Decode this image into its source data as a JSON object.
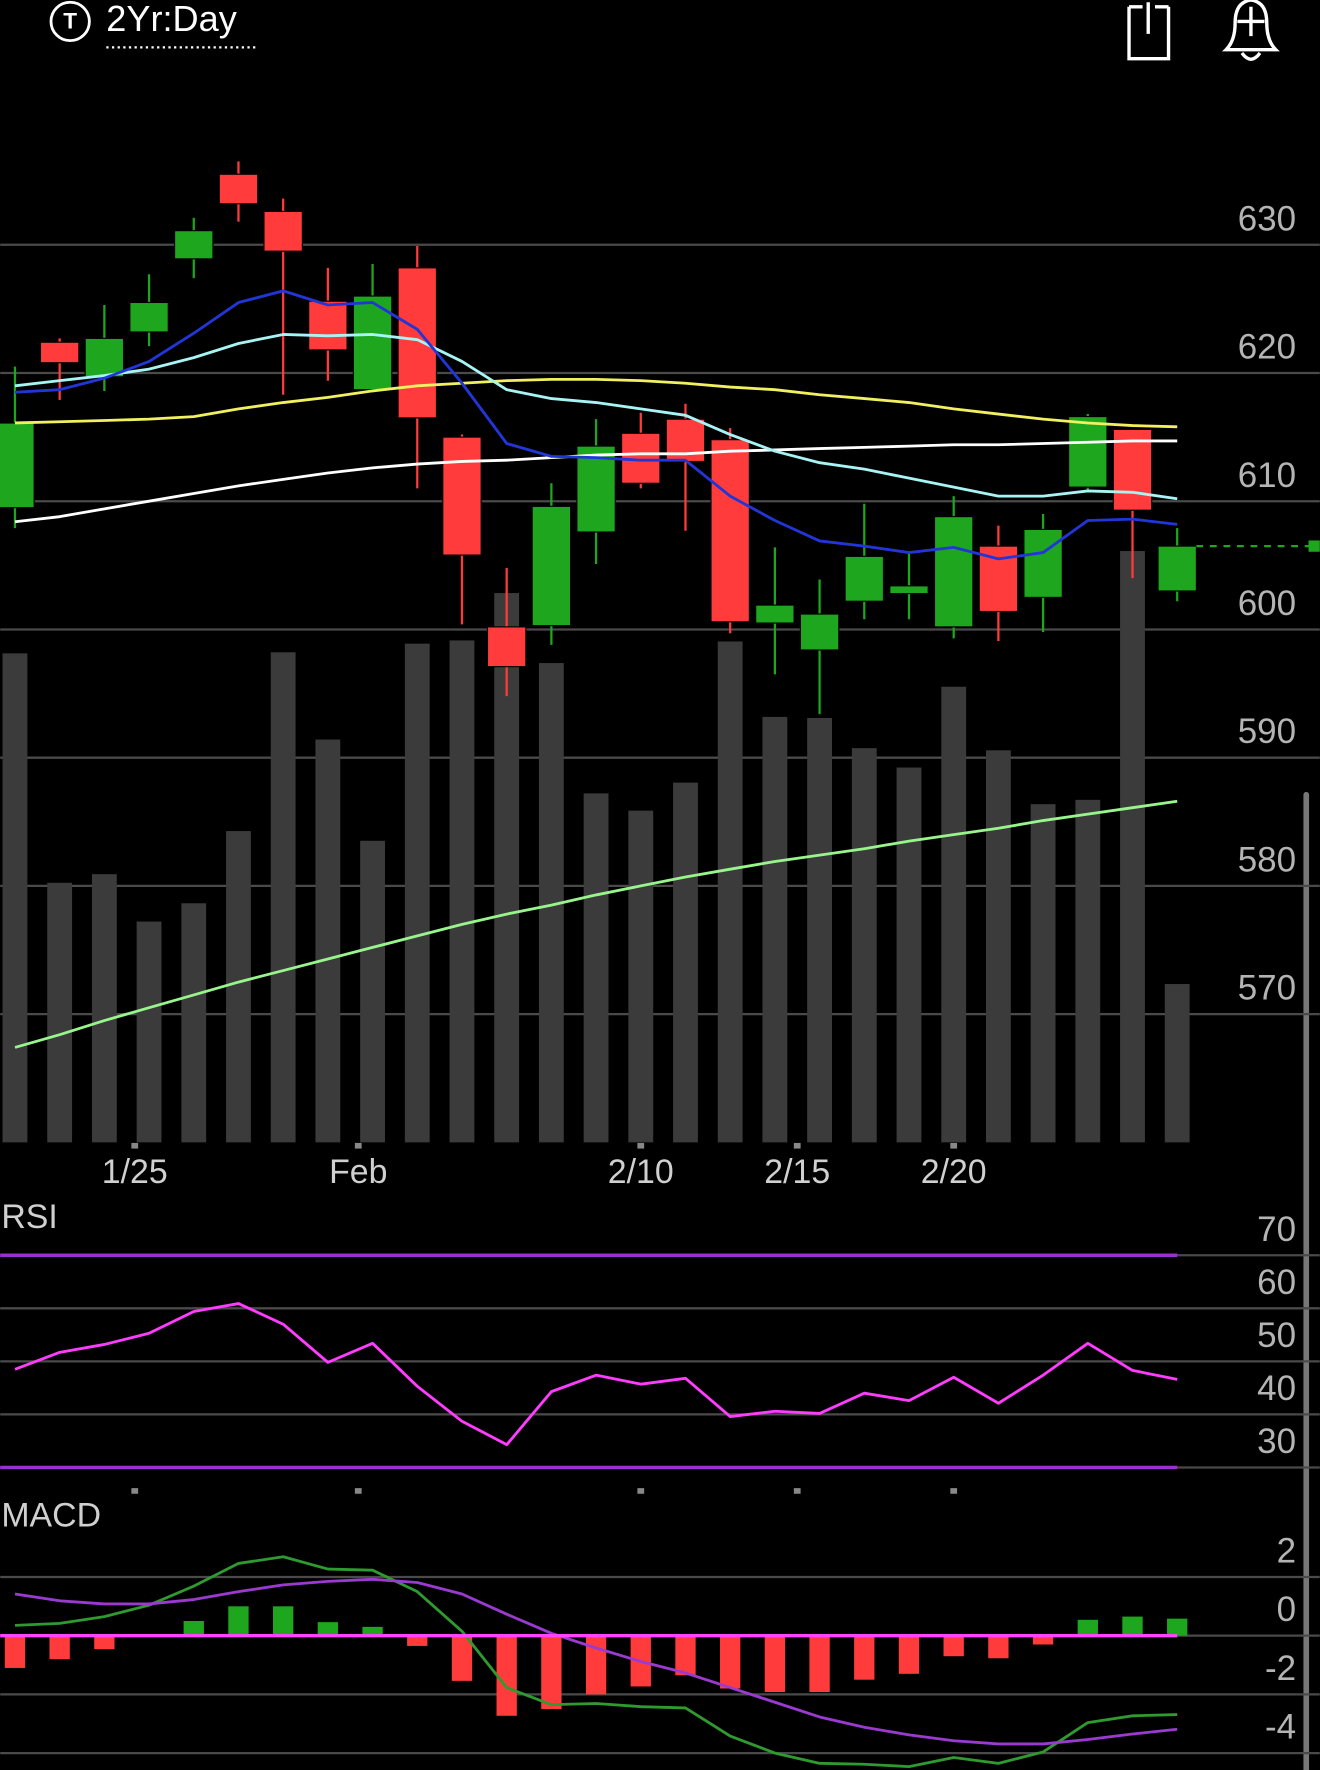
{
  "header": {
    "icon_letter": "T",
    "timeframe": "2Yr:Day"
  },
  "chart_data": [
    {
      "type": "candlestick",
      "xlim": [
        -0.33,
        29.19
      ],
      "xticks": [
        {
          "value": 2.68,
          "label": "1/25"
        },
        {
          "value": 7.68,
          "label": "Feb"
        },
        {
          "value": 14.0,
          "label": "2/10"
        },
        {
          "value": 17.5,
          "label": "2/15"
        },
        {
          "value": 21.0,
          "label": "2/20"
        }
      ],
      "ylim": [
        560,
        644
      ],
      "yticks": [
        570,
        580,
        590,
        600,
        610,
        620,
        630
      ],
      "grid": true,
      "up_color": "#1fa61f",
      "down_color": "#ff3b3b",
      "candles": {
        "open": [
          609.5,
          622.4,
          619.7,
          623.2,
          628.9,
          635.5,
          632.6,
          625.6,
          618.7,
          628.2,
          615.0,
          600.2,
          600.3,
          607.6,
          615.3,
          616.4,
          614.8,
          600.5,
          598.4,
          602.2,
          602.8,
          600.2,
          606.5,
          602.5,
          611.1,
          615.6,
          603.0
        ],
        "high": [
          620.5,
          622.7,
          625.3,
          627.7,
          632.1,
          636.5,
          633.6,
          628.2,
          628.5,
          629.9,
          615.2,
          604.8,
          611.4,
          616.4,
          616.9,
          617.6,
          615.7,
          606.4,
          603.9,
          609.8,
          606.0,
          610.4,
          608.1,
          609.0,
          616.8,
          615.6,
          607.9
        ],
        "low": [
          607.9,
          617.9,
          618.6,
          622.1,
          627.4,
          631.8,
          618.3,
          619.4,
          618.7,
          611.0,
          600.4,
          594.8,
          598.8,
          605.1,
          611.0,
          607.7,
          599.7,
          596.5,
          593.4,
          600.8,
          600.8,
          599.3,
          599.1,
          599.8,
          610.9,
          604.0,
          602.2
        ],
        "close": [
          616.1,
          620.8,
          622.7,
          625.5,
          631.1,
          633.2,
          629.5,
          621.8,
          626.0,
          616.5,
          605.8,
          597.1,
          609.6,
          614.3,
          611.4,
          613.1,
          600.6,
          601.9,
          601.2,
          605.7,
          603.4,
          608.8,
          601.4,
          607.8,
          616.6,
          609.3,
          606.5
        ]
      },
      "volume": {
        "color": "#3b3b3b",
        "ylim": [
          0,
          100
        ],
        "values": [
          45.4,
          24.1,
          24.9,
          20.5,
          22.2,
          28.9,
          45.5,
          37.4,
          28.0,
          46.3,
          46.6,
          51.0,
          44.5,
          32.4,
          30.8,
          33.4,
          46.5,
          39.5,
          39.4,
          36.6,
          34.8,
          42.3,
          36.4,
          31.4,
          31.8,
          54.9,
          14.7
        ]
      },
      "series": [
        {
          "color": "#98f58c",
          "values": [
            567.4,
            568.4,
            569.5,
            570.5,
            571.5,
            572.5,
            573.4,
            574.3,
            575.2,
            576.1,
            577.0,
            577.8,
            578.5,
            579.3,
            580.0,
            580.7,
            581.3,
            581.9,
            582.4,
            582.9,
            583.5,
            584.0,
            584.5,
            585.1,
            585.6,
            586.1,
            586.6
          ]
        },
        {
          "color": "#f0f060",
          "values": [
            616.1,
            616.2,
            616.3,
            616.4,
            616.6,
            617.2,
            617.7,
            618.1,
            618.6,
            619.0,
            619.2,
            619.4,
            619.5,
            619.5,
            619.4,
            619.2,
            618.9,
            618.7,
            618.3,
            618.0,
            617.7,
            617.2,
            616.8,
            616.4,
            616.1,
            615.9,
            615.8
          ]
        },
        {
          "color": "#ffffff",
          "values": [
            608.4,
            608.8,
            609.4,
            610.0,
            610.6,
            611.2,
            611.7,
            612.2,
            612.6,
            612.9,
            613.1,
            613.2,
            613.4,
            613.6,
            613.7,
            613.7,
            613.9,
            614.0,
            614.1,
            614.2,
            614.3,
            614.4,
            614.4,
            614.5,
            614.6,
            614.7,
            614.7
          ]
        },
        {
          "color": "#a8f4f4",
          "values": [
            619.0,
            619.4,
            619.8,
            620.3,
            621.2,
            622.3,
            623.0,
            622.9,
            623.0,
            622.6,
            620.9,
            618.7,
            618.0,
            617.7,
            617.2,
            616.7,
            615.2,
            613.9,
            613.0,
            612.5,
            611.8,
            611.1,
            610.4,
            610.4,
            610.8,
            610.7,
            610.2
          ]
        },
        {
          "color": "#2236d8",
          "values": [
            618.5,
            618.7,
            619.6,
            620.9,
            623.1,
            625.5,
            626.4,
            625.3,
            625.5,
            623.4,
            619.2,
            614.5,
            613.5,
            613.4,
            613.2,
            613.2,
            610.4,
            608.5,
            606.9,
            606.5,
            606.0,
            606.4,
            605.5,
            606.0,
            608.5,
            608.6,
            608.2
          ]
        }
      ],
      "last_price": 606.5,
      "last_price_color": "#1fa61f"
    },
    {
      "type": "line",
      "title": "RSI",
      "xlim": [
        -0.33,
        29.19
      ],
      "ylim": [
        26,
        80
      ],
      "yticks": [
        30,
        40,
        50,
        60,
        70
      ],
      "grid": true,
      "levels": [
        70,
        30
      ],
      "level_color": "#9b30d0",
      "series": [
        {
          "color": "#ff3cff",
          "values": [
            48.5,
            51.7,
            53.2,
            55.3,
            59.4,
            60.9,
            57.0,
            49.8,
            53.4,
            45.3,
            38.7,
            34.3,
            44.3,
            47.4,
            45.7,
            46.8,
            39.6,
            40.6,
            40.2,
            44.0,
            42.6,
            47.0,
            42.1,
            47.4,
            53.4,
            48.3,
            46.6
          ]
        }
      ]
    },
    {
      "type": "macd",
      "title": "MACD",
      "xlim": [
        -0.33,
        29.19
      ],
      "ylim": [
        -4.6,
        3.4
      ],
      "yticks": [
        2,
        0,
        -2,
        -4
      ],
      "grid": true,
      "levels": [
        0
      ],
      "level_color": "#ff44ff",
      "histogram": {
        "up_color": "#1fa61f",
        "down_color": "#ff3b3b",
        "values": [
          -1.1,
          -0.8,
          -0.46,
          0,
          0.5,
          1.0,
          1.0,
          0.46,
          0.3,
          -0.35,
          -1.54,
          -2.73,
          -2.5,
          -2.0,
          -1.73,
          -1.35,
          -1.8,
          -1.92,
          -1.92,
          -1.5,
          -1.3,
          -0.7,
          -0.77,
          -0.3,
          0.54,
          0.65,
          0.58
        ]
      },
      "series": [
        {
          "color": "#2f9a2f",
          "values": [
            0.35,
            0.42,
            0.65,
            1.04,
            1.69,
            2.46,
            2.69,
            2.27,
            2.23,
            1.5,
            0.15,
            -1.77,
            -2.35,
            -2.31,
            -2.42,
            -2.46,
            -3.42,
            -4.0,
            -4.35,
            -4.38,
            -4.46,
            -4.15,
            -4.35,
            -3.96,
            -2.96,
            -2.73,
            -2.69
          ]
        },
        {
          "color": "#9a3ad0",
          "values": [
            1.42,
            1.19,
            1.08,
            1.08,
            1.23,
            1.5,
            1.73,
            1.85,
            1.92,
            1.81,
            1.42,
            0.73,
            0.08,
            -0.42,
            -0.88,
            -1.27,
            -1.77,
            -2.27,
            -2.77,
            -3.12,
            -3.38,
            -3.58,
            -3.69,
            -3.69,
            -3.54,
            -3.35,
            -3.19
          ]
        }
      ]
    }
  ]
}
